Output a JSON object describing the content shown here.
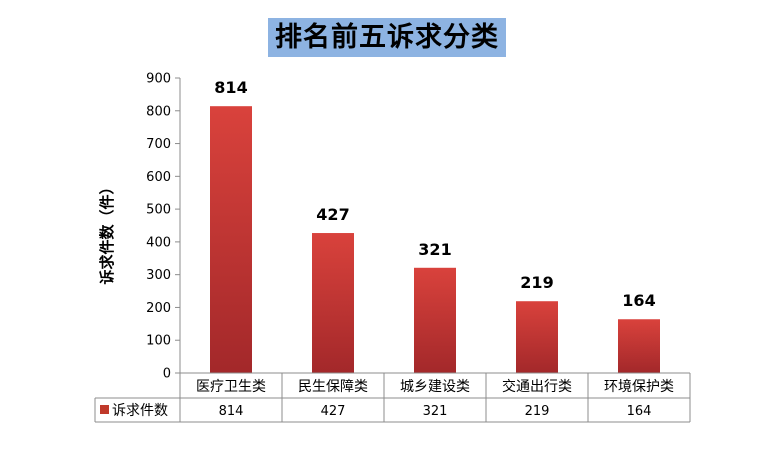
{
  "chart_data": {
    "type": "bar",
    "title": "排名前五诉求分类",
    "ylabel": "诉求件数（件）",
    "xlabel": "",
    "categories": [
      "医疗卫生类",
      "民生保障类",
      "城乡建设类",
      "交通出行类",
      "环境保护类"
    ],
    "series": [
      {
        "name": "诉求件数",
        "values": [
          814,
          427,
          321,
          219,
          164
        ],
        "color": "#c0392b"
      }
    ],
    "ylim": [
      0,
      900
    ],
    "yticks": [
      0,
      100,
      200,
      300,
      400,
      500,
      600,
      700,
      800,
      900
    ],
    "data_labels": true,
    "data_table": true,
    "grid": false
  },
  "colors": {
    "title_bg": "#8db3e2",
    "bar_top": "#d9423c",
    "bar_bottom": "#a3282a",
    "axis": "#8c8c8c"
  }
}
